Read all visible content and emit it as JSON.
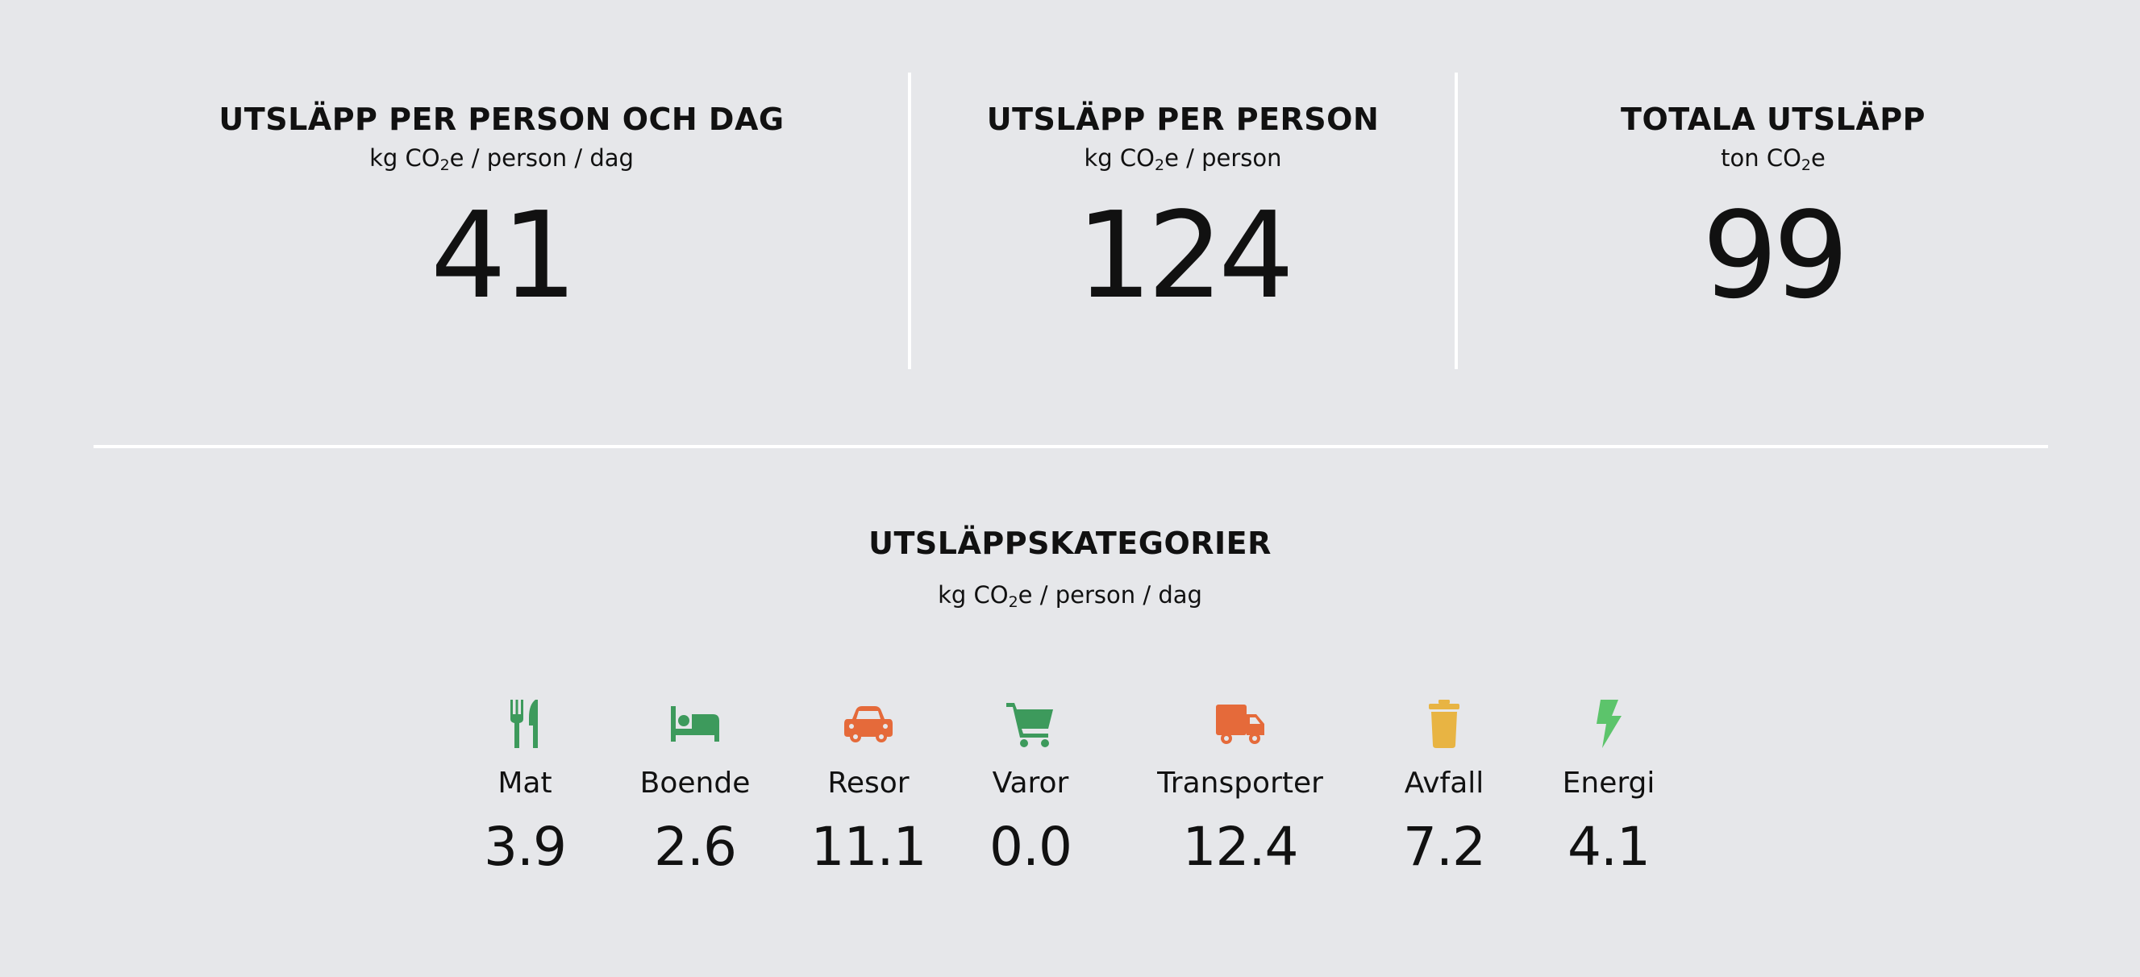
{
  "colors": {
    "background": "#e6e7ea",
    "divider": "#ffffff",
    "green": "#3d9a5c",
    "orange": "#e56a3a",
    "yellow": "#e8b443",
    "light_green": "#5cc46b"
  },
  "stats": [
    {
      "title": "UTSLÄPP PER PERSON OCH DAG",
      "unit_pre": "kg CO",
      "unit_sub": "2",
      "unit_post": "e / person / dag",
      "value": "41"
    },
    {
      "title": "UTSLÄPP PER PERSON",
      "unit_pre": "kg CO",
      "unit_sub": "2",
      "unit_post": "e / person",
      "value": "124"
    },
    {
      "title": "TOTALA UTSLÄPP",
      "unit_pre": "ton CO",
      "unit_sub": "2",
      "unit_post": "e",
      "value": "99"
    }
  ],
  "categories_section": {
    "title": "UTSLÄPPSKATEGORIER",
    "unit_pre": "kg CO",
    "unit_sub": "2",
    "unit_post": "e / person / dag"
  },
  "categories": [
    {
      "icon": "utensils-icon",
      "label": "Mat",
      "value": "3.9"
    },
    {
      "icon": "bed-icon",
      "label": "Boende",
      "value": "2.6"
    },
    {
      "icon": "car-icon",
      "label": "Resor",
      "value": "11.1"
    },
    {
      "icon": "shopping-cart-icon",
      "label": "Varor",
      "value": "0.0"
    },
    {
      "icon": "truck-icon",
      "label": "Transporter",
      "value": "12.4"
    },
    {
      "icon": "trash-icon",
      "label": "Avfall",
      "value": "7.2"
    },
    {
      "icon": "lightning-icon",
      "label": "Energi",
      "value": "4.1"
    }
  ]
}
